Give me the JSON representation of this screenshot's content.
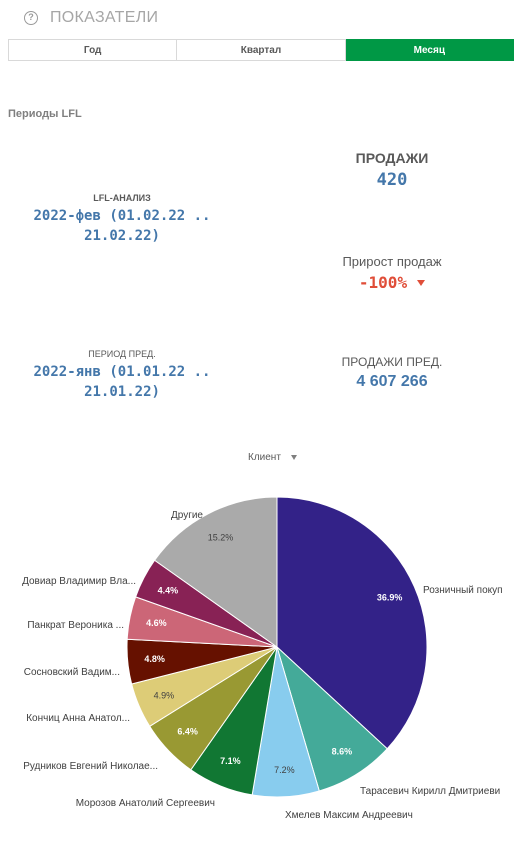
{
  "header": {
    "title": "ПОКАЗАТЕЛИ",
    "help_glyph": "?"
  },
  "tabs": [
    {
      "label": "Год",
      "active": false
    },
    {
      "label": "Квартал",
      "active": false
    },
    {
      "label": "Месяц",
      "active": true
    }
  ],
  "section_label": "Периоды LFL",
  "lfl": {
    "title": "LFL-АНАЛИЗ",
    "line1": "2022-фев (01.02.22 ..",
    "line2": "21.02.22)"
  },
  "prev_period": {
    "title": "ПЕРИОД ПРЕД.",
    "line1": "2022-янв (01.01.22 ..",
    "line2": "21.01.22)"
  },
  "sales": {
    "title": "ПРОДАЖИ",
    "value": "420"
  },
  "growth": {
    "title": "Прирост продаж",
    "value": "-100%",
    "color": "#e04e39"
  },
  "prev_sales": {
    "title": "ПРОДАЖИ ПРЕД.",
    "value": "4 607 266"
  },
  "dimension": {
    "label": "Клиент"
  },
  "chart_data": {
    "type": "pie",
    "title": "",
    "slices": [
      {
        "name": "Розничный покуп",
        "value": 36.9,
        "label": "36.9%",
        "color": "#332288"
      },
      {
        "name": "Тарасевич Кирилл Дмитриеви",
        "value": 8.6,
        "label": "8.6%",
        "color": "#44aa99"
      },
      {
        "name": "Хмелев Максим Андреевич",
        "value": 7.2,
        "label": "7.2%",
        "color": "#88ccee"
      },
      {
        "name": "Морозов Анатолий Сергеевич",
        "value": 7.1,
        "label": "7.1%",
        "color": "#117733"
      },
      {
        "name": "Рудников Евгений Николае...",
        "value": 6.4,
        "label": "6.4%",
        "color": "#999933"
      },
      {
        "name": "Кончиц Анна Анатол...",
        "value": 4.9,
        "label": "4.9%",
        "color": "#ddcc77"
      },
      {
        "name": "Сосновский Вадим...",
        "value": 4.8,
        "label": "4.8%",
        "color": "#661100"
      },
      {
        "name": "Панкрат Вероника ...",
        "value": 4.6,
        "label": "4.6%",
        "color": "#cc6677"
      },
      {
        "name": "Довиар Владимир Вла...",
        "value": 4.4,
        "label": "4.4%",
        "color": "#882255"
      },
      {
        "name": "Другие",
        "value": 15.2,
        "label": "15.2%",
        "color": "#aaaaaa"
      }
    ]
  }
}
